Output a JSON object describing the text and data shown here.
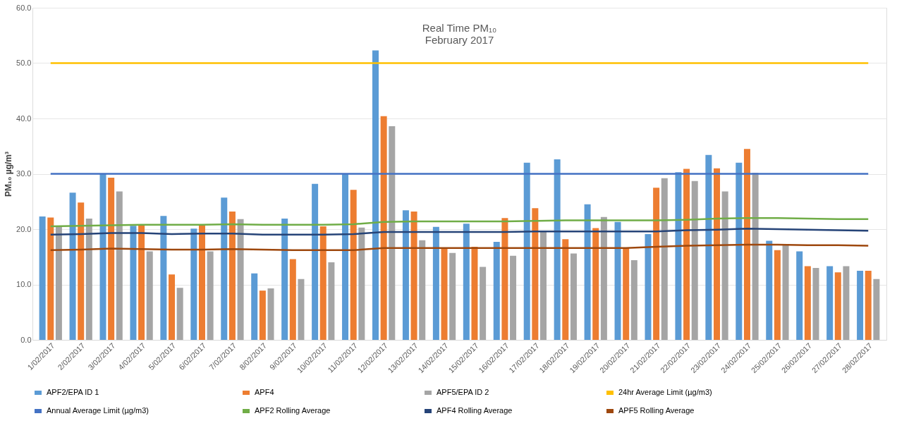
{
  "chart_data": {
    "type": "bar",
    "title": [
      "Real Time PM₁₀",
      "February 2017"
    ],
    "ylabel": "PM₁₀ µg/m³",
    "categories": [
      "1/02/2017",
      "2/02/2017",
      "3/02/2017",
      "4/02/2017",
      "5/02/2017",
      "6/02/2017",
      "7/02/2017",
      "8/02/2017",
      "9/02/2017",
      "10/02/2017",
      "11/02/2017",
      "12/02/2017",
      "13/02/2017",
      "14/02/2017",
      "15/02/2017",
      "16/02/2017",
      "17/02/2017",
      "18/02/2017",
      "19/02/2017",
      "20/02/2017",
      "21/02/2017",
      "22/02/2017",
      "23/02/2017",
      "24/02/2017",
      "25/02/2017",
      "26/02/2017",
      "27/02/2017",
      "28/02/2017"
    ],
    "series": [
      {
        "name": "APF2/EPA ID 1",
        "color": "#5b9bd5",
        "values": [
          22.3,
          26.6,
          30.0,
          20.6,
          22.4,
          20.1,
          25.7,
          12.0,
          21.9,
          28.2,
          30.0,
          52.3,
          23.4,
          20.4,
          21.0,
          17.7,
          32.0,
          32.6,
          24.5,
          21.3,
          19.1,
          30.3,
          33.4,
          32.0,
          17.9,
          16.0,
          13.3,
          12.5
        ]
      },
      {
        "name": "APF4",
        "color": "#ed7d31",
        "values": [
          22.1,
          24.8,
          29.3,
          20.8,
          11.8,
          20.7,
          23.2,
          8.9,
          14.6,
          20.5,
          27.1,
          40.4,
          23.2,
          16.6,
          16.8,
          22.0,
          23.8,
          18.2,
          20.2,
          16.6,
          27.5,
          30.9,
          31.0,
          34.5,
          16.2,
          13.3,
          12.2,
          12.5
        ]
      },
      {
        "name": "APF5/EPA ID 2",
        "color": "#a5a5a5",
        "values": [
          20.5,
          21.9,
          26.8,
          16.0,
          9.4,
          16.0,
          21.8,
          9.3,
          11.0,
          14.0,
          20.3,
          38.6,
          18.0,
          15.7,
          13.2,
          15.2,
          19.6,
          15.6,
          22.2,
          14.4,
          29.2,
          28.7,
          26.8,
          30.2,
          17.1,
          13.0,
          13.3,
          11.0
        ]
      },
      {
        "name": "24hr Average Limit (µg/m3)",
        "type": "line",
        "color": "#ffc000",
        "values": [
          50,
          50,
          50,
          50,
          50,
          50,
          50,
          50,
          50,
          50,
          50,
          50,
          50,
          50,
          50,
          50,
          50,
          50,
          50,
          50,
          50,
          50,
          50,
          50,
          50,
          50,
          50,
          50
        ]
      },
      {
        "name": "Annual Average Limit (µg/m3)",
        "type": "line",
        "color": "#4472c4",
        "values": [
          30,
          30,
          30,
          30,
          30,
          30,
          30,
          30,
          30,
          30,
          30,
          30,
          30,
          30,
          30,
          30,
          30,
          30,
          30,
          30,
          30,
          30,
          30,
          30,
          30,
          30,
          30,
          30
        ]
      },
      {
        "name": "APF2 Rolling Average",
        "type": "line",
        "color": "#70ad47",
        "values": [
          20.5,
          20.6,
          20.7,
          20.8,
          20.8,
          20.8,
          20.9,
          20.8,
          20.8,
          20.8,
          20.9,
          21.3,
          21.4,
          21.4,
          21.4,
          21.4,
          21.5,
          21.6,
          21.6,
          21.6,
          21.6,
          21.7,
          21.9,
          22.0,
          22.0,
          21.9,
          21.8,
          21.8
        ]
      },
      {
        "name": "APF4 Rolling Average",
        "type": "line",
        "color": "#264478",
        "values": [
          19.0,
          19.1,
          19.3,
          19.3,
          19.1,
          19.2,
          19.2,
          19.0,
          19.0,
          19.0,
          19.1,
          19.5,
          19.5,
          19.5,
          19.5,
          19.5,
          19.6,
          19.6,
          19.6,
          19.6,
          19.6,
          19.8,
          19.9,
          20.1,
          20.0,
          19.9,
          19.8,
          19.7
        ]
      },
      {
        "name": "APF5 Rolling Average",
        "type": "line",
        "color": "#9e480e",
        "values": [
          16.2,
          16.3,
          16.5,
          16.4,
          16.3,
          16.3,
          16.4,
          16.3,
          16.2,
          16.2,
          16.2,
          16.6,
          16.6,
          16.6,
          16.6,
          16.6,
          16.6,
          16.6,
          16.6,
          16.6,
          16.8,
          17.0,
          17.1,
          17.2,
          17.2,
          17.1,
          17.1,
          17.0
        ]
      }
    ],
    "ylim": [
      0,
      60
    ],
    "yticks": [
      {
        "value": 0,
        "label": "0.0"
      },
      {
        "value": 10,
        "label": "10.0"
      },
      {
        "value": 20,
        "label": "20.0"
      },
      {
        "value": 30,
        "label": "30.0"
      },
      {
        "value": 40,
        "label": "40.0"
      },
      {
        "value": 50,
        "label": "50.0"
      },
      {
        "value": 60,
        "label": "60.0"
      }
    ],
    "grid": "y",
    "legend": "bottom"
  }
}
